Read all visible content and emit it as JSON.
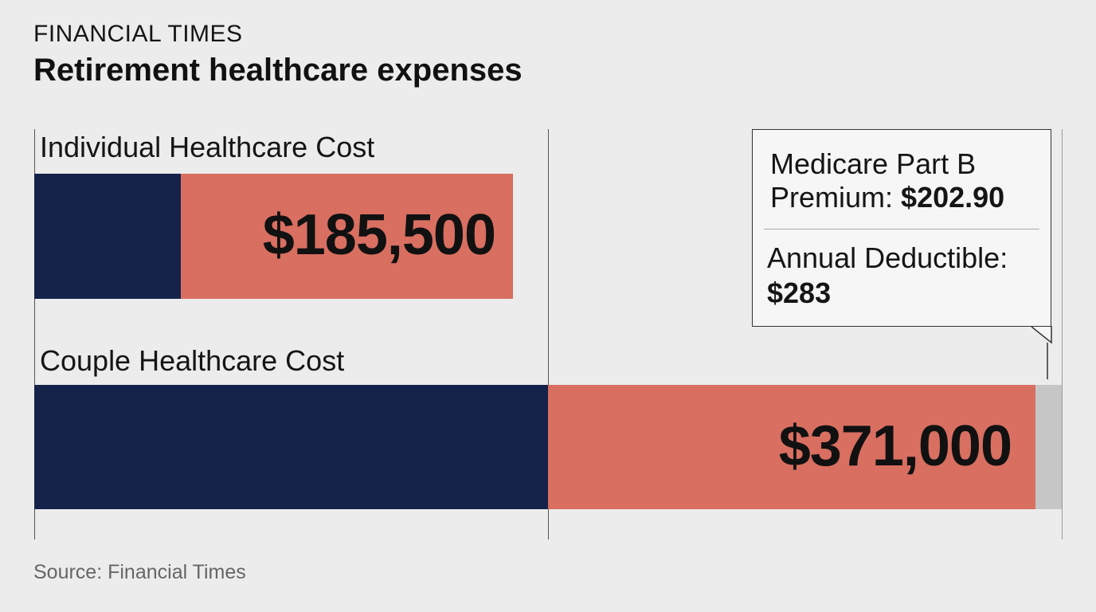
{
  "header": {
    "brand": "FINANCIAL TIMES",
    "title": "Retirement healthcare expenses"
  },
  "colors": {
    "navy": "#15234b",
    "salmon": "#d86f61",
    "grey": "#c6c6c6",
    "background": "#ececec"
  },
  "chart_data": {
    "type": "bar",
    "orientation": "horizontal",
    "title": "Retirement healthcare expenses",
    "categories": [
      "Individual Healthcare Cost",
      "Couple Healthcare Cost"
    ],
    "values": [
      185500,
      371000
    ],
    "value_labels": [
      "$185,500",
      "$371,000"
    ],
    "grid": true,
    "annotations": [
      {
        "target": "Couple Healthcare Cost",
        "label_1": "Medicare Part B",
        "label_2": "Premium:",
        "value_1": "$202.90",
        "label_3": "Annual Deductible:",
        "value_2": "$283"
      }
    ]
  },
  "footer": {
    "source": "Source: Financial Times"
  }
}
